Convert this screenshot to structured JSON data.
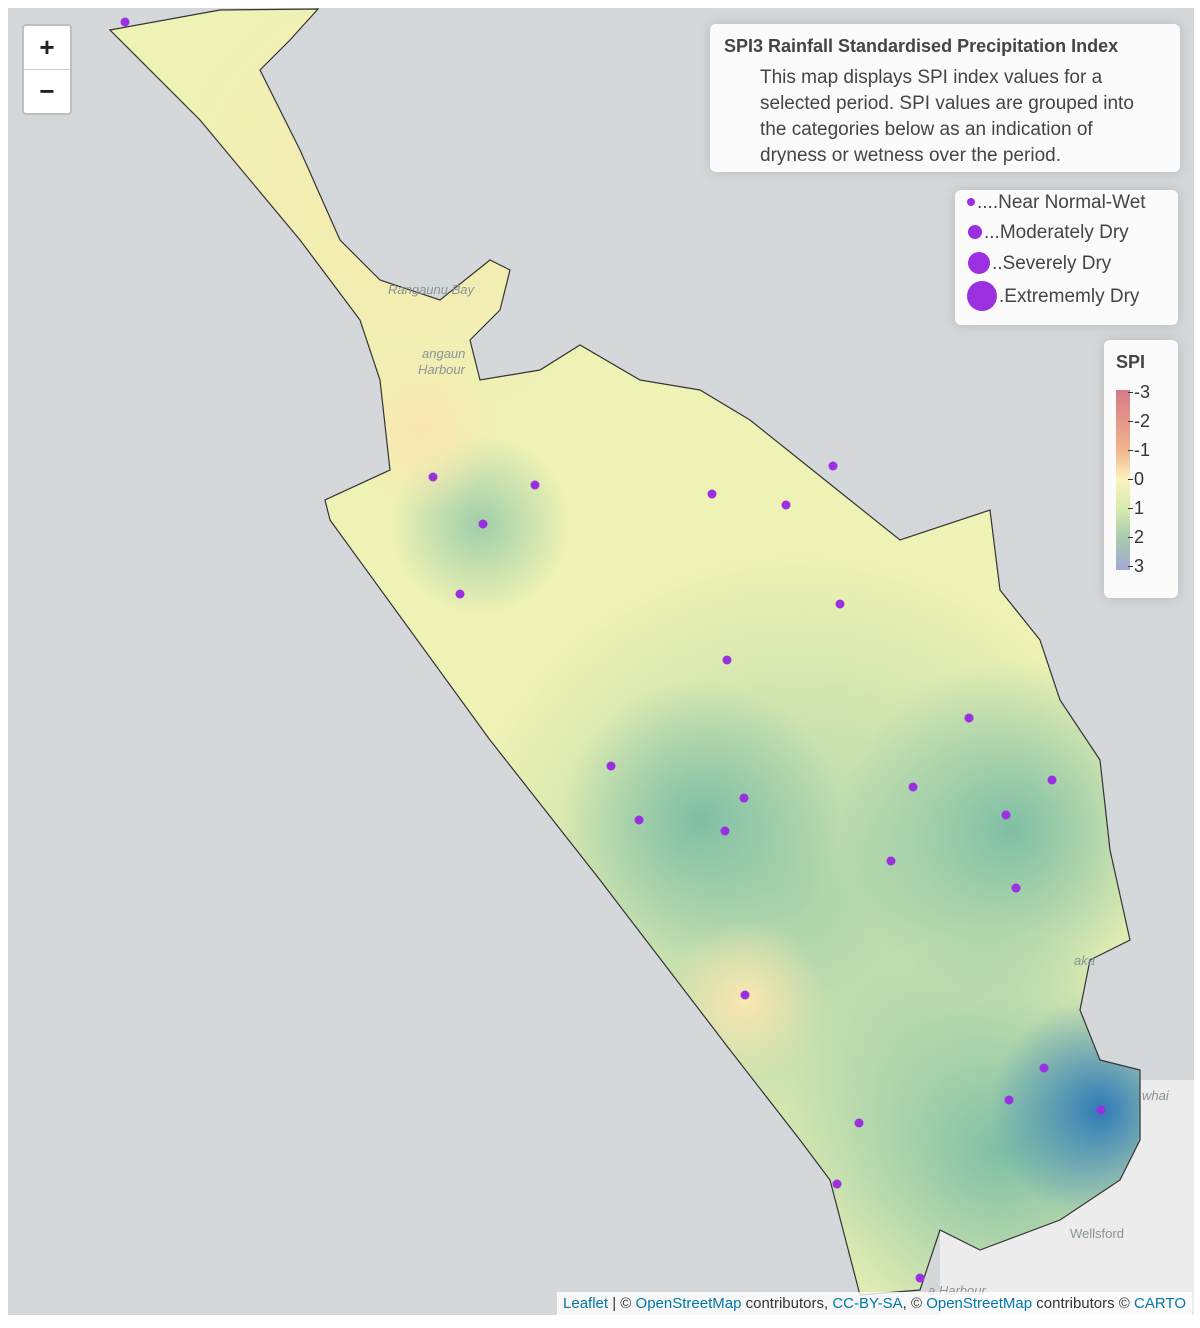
{
  "zoom": {
    "in": "+",
    "out": "−"
  },
  "info": {
    "title": "SPI3 Rainfall Standardised Precipitation Index",
    "description": "This map displays SPI index values for a selected period. SPI values are grouped into the categories below as an indication of dryness or wetness over the period."
  },
  "legend": [
    "....Near Normal-Wet",
    "...Moderately Dry",
    "..Severely Dry",
    ".Extrememly Dry"
  ],
  "colorbar": {
    "title": "SPI",
    "ticks": [
      -3,
      -2,
      -1,
      0,
      1,
      2,
      3
    ]
  },
  "map_labels": [
    "Rangaunu Bay",
    "angaun",
    "Harbour",
    "aka",
    "whai",
    "Wellsford",
    "a Harbour"
  ],
  "attribution": {
    "links": [
      "Leaflet",
      "OpenStreetMap",
      "CC-BY-SA",
      "OpenStreetMap",
      "CARTO"
    ],
    "separators": [
      " | © ",
      " contributors, ",
      ", © ",
      " contributors © "
    ]
  }
}
